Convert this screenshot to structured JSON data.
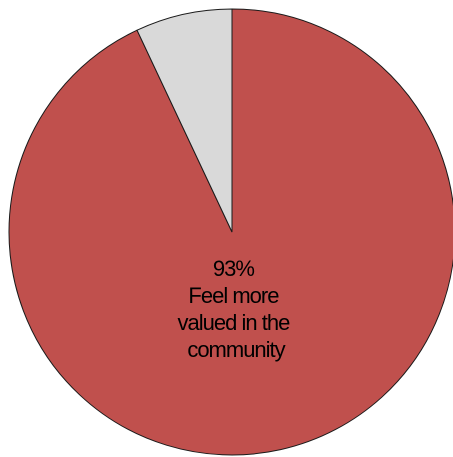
{
  "chart_data": {
    "type": "pie",
    "title": "",
    "legend": "none",
    "start": "top",
    "direction": "clockwise",
    "slices": [
      {
        "value": 93,
        "color": "#c0504d",
        "label_lines": [
          "93%",
          "Feel more",
          "valued in the",
          "community"
        ]
      },
      {
        "value": 7,
        "color": "#d9d9d9",
        "label_lines": []
      }
    ]
  }
}
